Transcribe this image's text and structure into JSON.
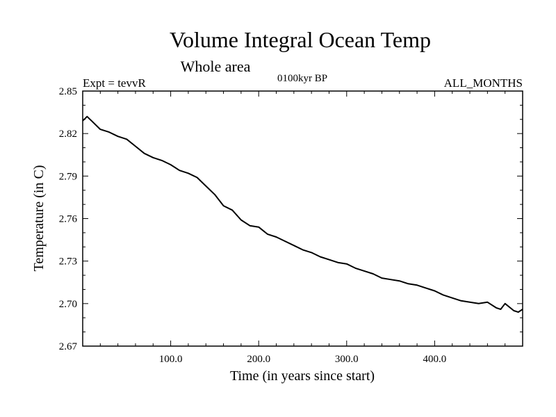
{
  "chart_data": {
    "type": "line",
    "title": "Volume Integral Ocean Temp",
    "subtitle": "Whole area",
    "annotations": {
      "experiment": "Expt = tevvR",
      "period": "0100kyr BP",
      "months": "ALL_MONTHS"
    },
    "xlabel": "Time (in years since start)",
    "ylabel": "Temperature (in C)",
    "xlim": [
      0,
      500
    ],
    "ylim": [
      2.67,
      2.85
    ],
    "x_ticks": [
      100,
      200,
      300,
      400
    ],
    "x_tick_labels": [
      "100.0",
      "200.0",
      "300.0",
      "400.0"
    ],
    "y_ticks": [
      2.67,
      2.7,
      2.73,
      2.76,
      2.79,
      2.82,
      2.85
    ],
    "y_tick_labels": [
      "2.67",
      "2.70",
      "2.73",
      "2.76",
      "2.79",
      "2.82",
      "2.85"
    ],
    "grid": false,
    "line_color": "#000000",
    "series": [
      {
        "x": [
          0,
          5,
          10,
          20,
          30,
          40,
          50,
          60,
          70,
          80,
          90,
          100,
          110,
          120,
          130,
          140,
          150,
          160,
          170,
          180,
          190,
          200,
          210,
          220,
          230,
          240,
          250,
          260,
          270,
          280,
          290,
          300,
          310,
          320,
          330,
          340,
          350,
          360,
          370,
          380,
          390,
          400,
          410,
          420,
          430,
          440,
          450,
          460,
          470,
          475,
          480,
          490,
          495,
          500
        ],
        "y": [
          2.829,
          2.832,
          2.829,
          2.823,
          2.821,
          2.818,
          2.816,
          2.811,
          2.806,
          2.803,
          2.801,
          2.798,
          2.794,
          2.792,
          2.789,
          2.783,
          2.777,
          2.769,
          2.766,
          2.759,
          2.755,
          2.754,
          2.749,
          2.747,
          2.744,
          2.741,
          2.738,
          2.736,
          2.733,
          2.731,
          2.729,
          2.728,
          2.725,
          2.723,
          2.721,
          2.718,
          2.717,
          2.716,
          2.714,
          2.713,
          2.711,
          2.709,
          2.706,
          2.704,
          2.702,
          2.701,
          2.7,
          2.701,
          2.697,
          2.696,
          2.7,
          2.695,
          2.694,
          2.696
        ]
      }
    ]
  }
}
